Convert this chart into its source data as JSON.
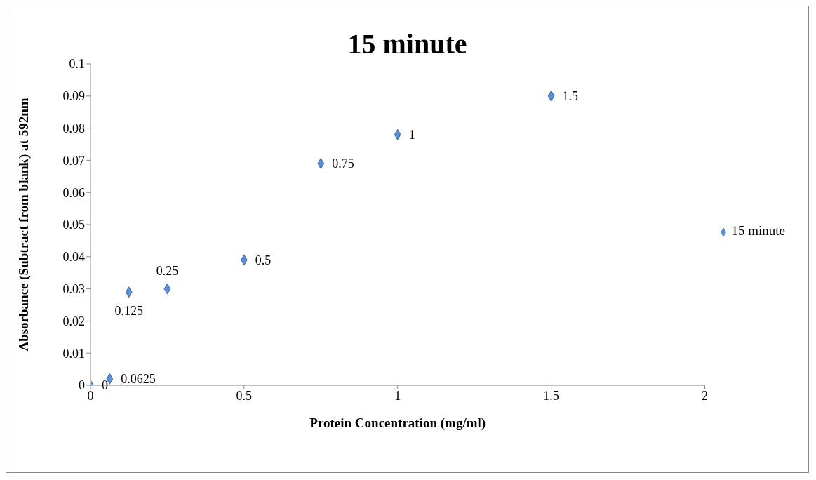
{
  "chart_data": {
    "type": "scatter",
    "title": "15 minute",
    "xlabel": "Protein Concentration (mg/ml)",
    "ylabel": "Absorbance (Subtract from blank) at 592nm",
    "series": [
      {
        "name": "15 minute",
        "color": "#5b8fd6",
        "x": [
          0,
          0.0625,
          0.125,
          0.25,
          0.5,
          0.75,
          1,
          1.5
        ],
        "values": [
          0,
          0.002,
          0.029,
          0.03,
          0.039,
          0.069,
          0.078,
          0.09
        ]
      }
    ],
    "annotations": [
      {
        "text": "0",
        "x": 0,
        "y": 0
      },
      {
        "text": "0.0625",
        "x": 0.0625,
        "y": 0.002
      },
      {
        "text": "0.125",
        "x": 0.125,
        "y": 0.029
      },
      {
        "text": "0.25",
        "x": 0.25,
        "y": 0.03
      },
      {
        "text": "0.5",
        "x": 0.5,
        "y": 0.039
      },
      {
        "text": "0.75",
        "x": 0.75,
        "y": 0.069
      },
      {
        "text": "1",
        "x": 1,
        "y": 0.078
      },
      {
        "text": "1.5",
        "x": 1.5,
        "y": 0.09
      }
    ],
    "xlim": [
      0,
      2
    ],
    "xticks": [
      0,
      0.5,
      1,
      1.5,
      2
    ],
    "ylim": [
      0,
      0.1
    ],
    "yticks": [
      0,
      0.01,
      0.02,
      0.03,
      0.04,
      0.05,
      0.06,
      0.07,
      0.08,
      0.09,
      0.1
    ],
    "grid": false,
    "legend": "right",
    "marker": "diamond"
  }
}
